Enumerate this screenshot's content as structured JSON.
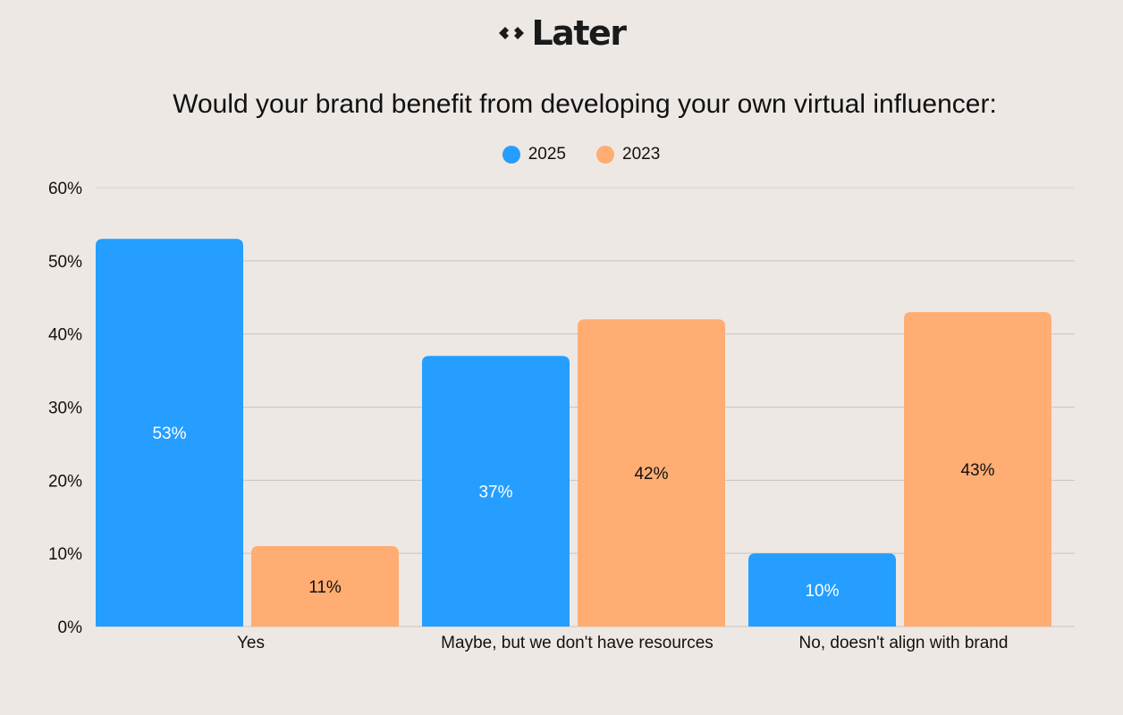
{
  "brand": {
    "name": "Later"
  },
  "chart_data": {
    "type": "bar",
    "title": "Would your brand benefit from developing your own virtual influencer:",
    "categories": [
      "Yes",
      "Maybe, but we don't have resources",
      "No, doesn't align with brand"
    ],
    "series": [
      {
        "name": "2025",
        "values": [
          53,
          37,
          10
        ],
        "color": "#259EFF",
        "label_color": "#FFFFFF"
      },
      {
        "name": "2023",
        "values": [
          11,
          42,
          43
        ],
        "color": "#FFAD72",
        "label_color": "#111111"
      }
    ],
    "value_suffix": "%",
    "ylim": [
      0,
      60
    ],
    "y_ticks": [
      "0%",
      "10%",
      "20%",
      "30%",
      "40%",
      "50%",
      "60%"
    ],
    "legend_position": "top",
    "grid": true
  }
}
